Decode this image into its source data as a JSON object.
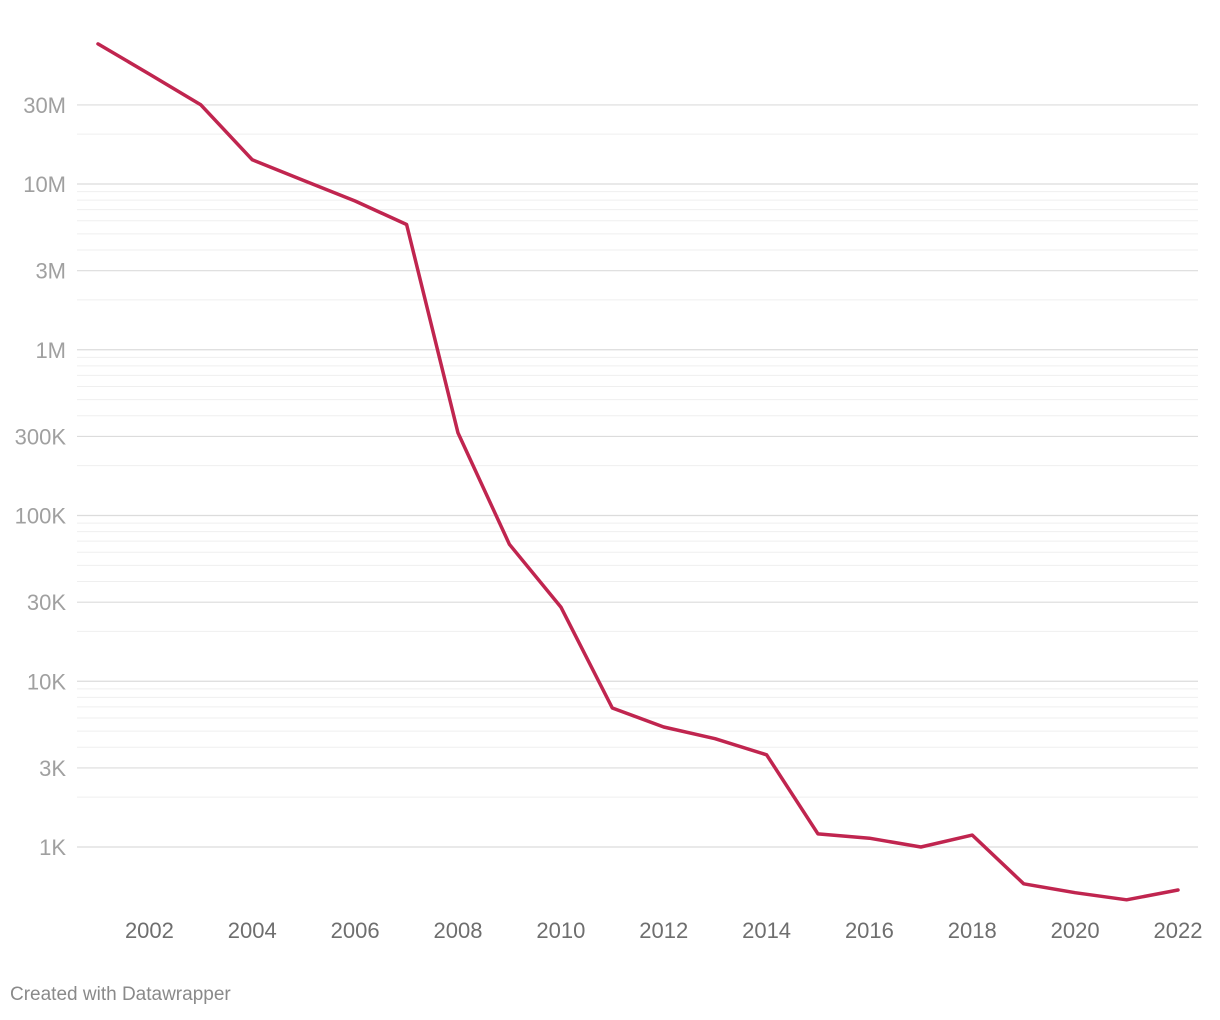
{
  "chart_data": {
    "type": "line",
    "yscale": "log",
    "ylim": [
      400,
      70000000
    ],
    "xlim": [
      2001,
      2022
    ],
    "grid": true,
    "y_ticks": [
      {
        "value": 30000000,
        "label": "30M"
      },
      {
        "value": 10000000,
        "label": "10M"
      },
      {
        "value": 3000000,
        "label": "3M"
      },
      {
        "value": 1000000,
        "label": "1M"
      },
      {
        "value": 300000,
        "label": "300K"
      },
      {
        "value": 100000,
        "label": "100K"
      },
      {
        "value": 30000,
        "label": "30K"
      },
      {
        "value": 10000,
        "label": "10K"
      },
      {
        "value": 3000,
        "label": "3K"
      },
      {
        "value": 1000,
        "label": "1K"
      }
    ],
    "x_ticks": [
      {
        "value": 2002,
        "label": "2002"
      },
      {
        "value": 2004,
        "label": "2004"
      },
      {
        "value": 2006,
        "label": "2006"
      },
      {
        "value": 2008,
        "label": "2008"
      },
      {
        "value": 2010,
        "label": "2010"
      },
      {
        "value": 2012,
        "label": "2012"
      },
      {
        "value": 2014,
        "label": "2014"
      },
      {
        "value": 2016,
        "label": "2016"
      },
      {
        "value": 2018,
        "label": "2018"
      },
      {
        "value": 2020,
        "label": "2020"
      },
      {
        "value": 2022,
        "label": "2022"
      }
    ],
    "series": [
      {
        "color": "#c0254f",
        "x": [
          2001,
          2002,
          2003,
          2004,
          2005,
          2006,
          2007,
          2008,
          2009,
          2010,
          2011,
          2012,
          2013,
          2014,
          2015,
          2016,
          2017,
          2018,
          2019,
          2020,
          2021,
          2022
        ],
        "values": [
          70000000,
          46000000,
          30000000,
          14000000,
          10500000,
          7900000,
          5700000,
          315000,
          67000,
          28000,
          6900,
          5300,
          4500,
          3600,
          1200,
          1130,
          1000,
          1180,
          600,
          530,
          480,
          550
        ]
      }
    ]
  },
  "footer": {
    "credit": "Created with Datawrapper"
  }
}
